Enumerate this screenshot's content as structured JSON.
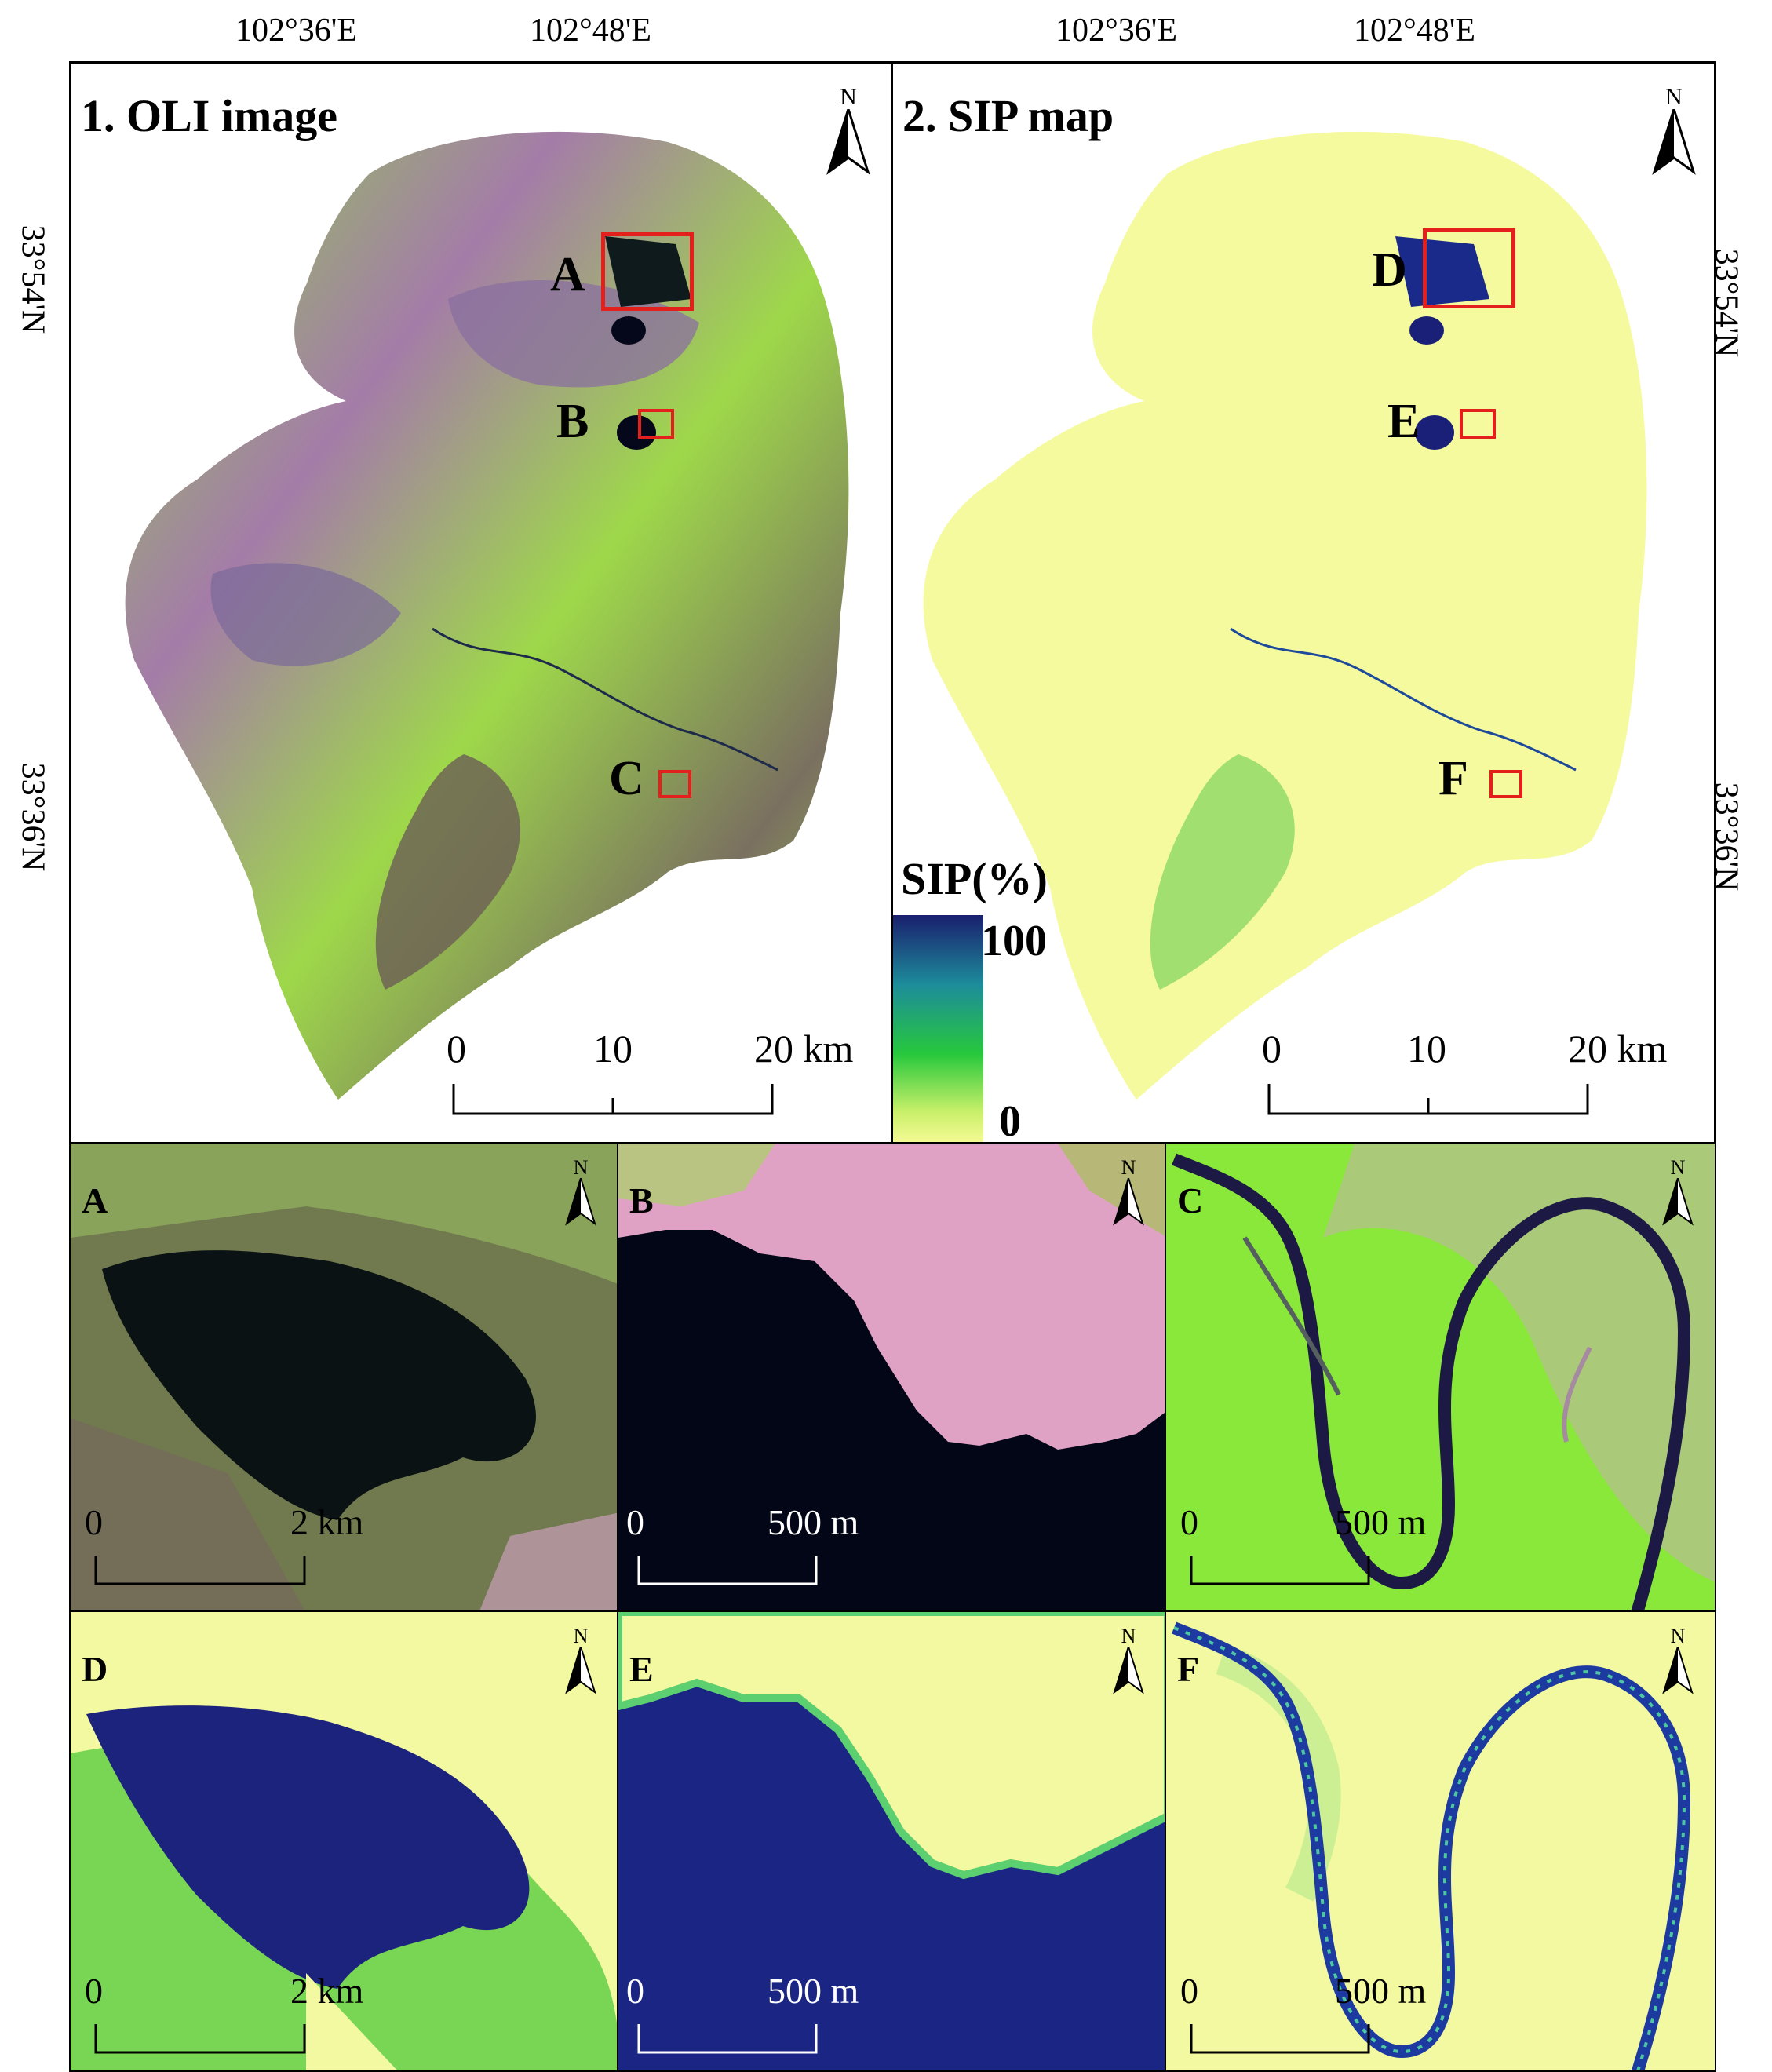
{
  "map": {
    "panels": [
      {
        "title": "1. OLI image",
        "labels": [
          "A",
          "B",
          "C"
        ]
      },
      {
        "title": "2. SIP map",
        "labels": [
          "D",
          "E",
          "F"
        ]
      }
    ],
    "lon_ticks": [
      "102°36'E",
      "102°48'E"
    ],
    "lat_ticks": [
      "33°54'N",
      "33°36'N"
    ],
    "north_label": "N",
    "scalebar": {
      "t0": "0",
      "t1": "10",
      "t2": "20 km"
    },
    "legend": {
      "title": "SIP(%)",
      "max": "100",
      "min": "0",
      "colors": [
        "#1a1f6e",
        "#1d8c9b",
        "#27c83c",
        "#c9f06a",
        "#fbfb9a"
      ]
    },
    "insets": [
      {
        "label": "A",
        "scale_0": "0",
        "scale_1": "2 km"
      },
      {
        "label": "B",
        "scale_0": "0",
        "scale_1": "500 m"
      },
      {
        "label": "C",
        "scale_0": "0",
        "scale_1": "500 m"
      },
      {
        "label": "D",
        "scale_0": "0",
        "scale_1": "2 km"
      },
      {
        "label": "E",
        "scale_0": "0",
        "scale_1": "500 m"
      },
      {
        "label": "F",
        "scale_0": "0",
        "scale_1": "500 m"
      }
    ]
  }
}
